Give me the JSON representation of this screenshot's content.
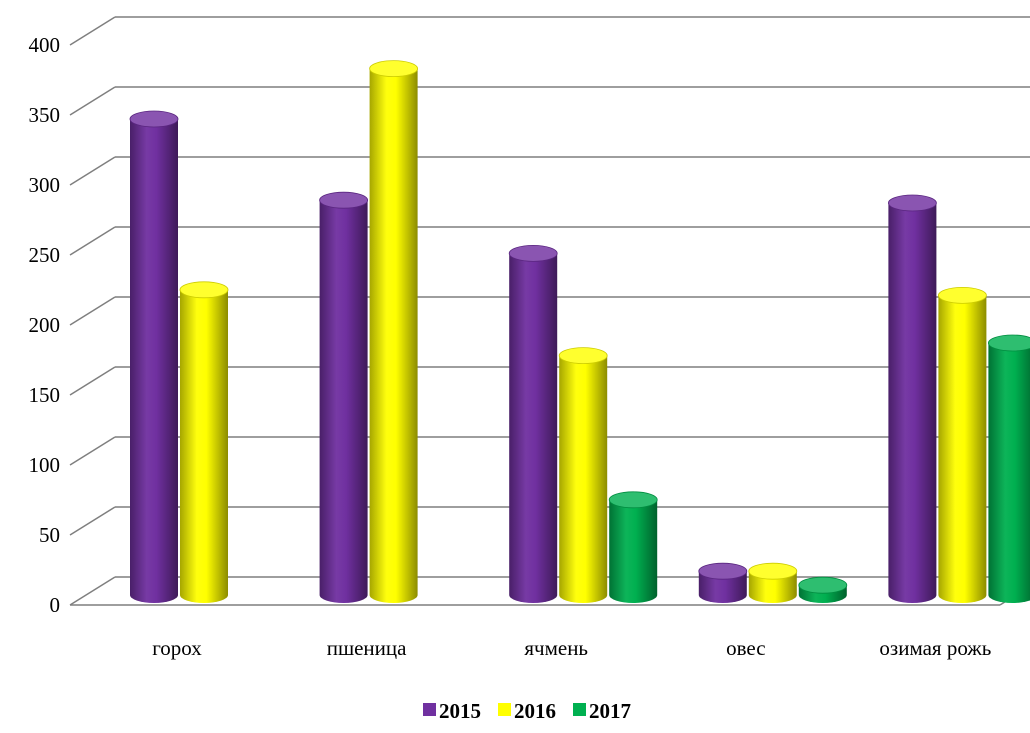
{
  "chart_data": {
    "type": "bar",
    "style": "3d-cylinder",
    "categories": [
      "горох",
      "пшеница",
      "ячмень",
      "овес",
      "озимая рожь"
    ],
    "series": [
      {
        "name": "2015",
        "color": "#7030A0",
        "values": [
          340,
          282,
          244,
          17,
          280
        ]
      },
      {
        "name": "2016",
        "color": "#FFFF00",
        "values": [
          218,
          376,
          171,
          17,
          214
        ]
      },
      {
        "name": "2017",
        "color": "#00B050",
        "values": [
          null,
          null,
          68,
          7,
          180
        ]
      }
    ],
    "ylim": [
      0,
      400
    ],
    "yticks": [
      0,
      50,
      100,
      150,
      200,
      250,
      300,
      350,
      400
    ],
    "xlabel": "",
    "ylabel": "",
    "title": "",
    "grid": true,
    "legend_position": "bottom"
  }
}
